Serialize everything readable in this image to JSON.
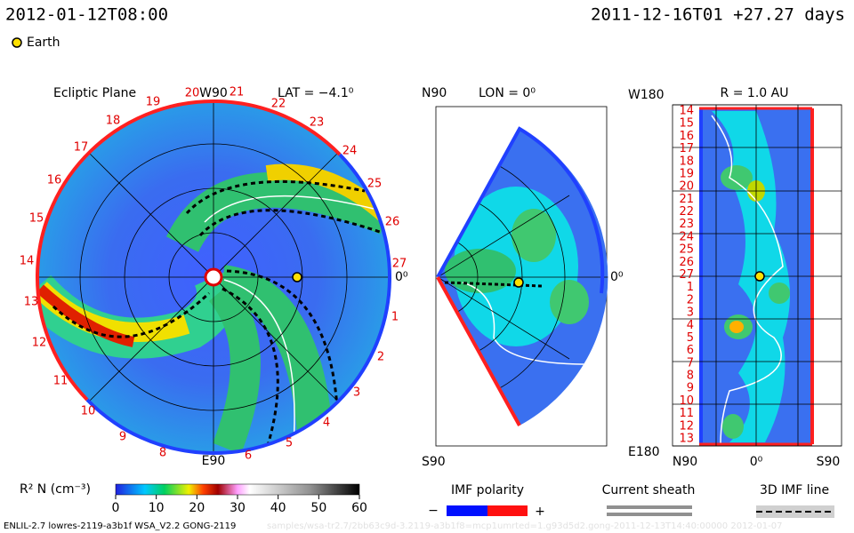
{
  "header": {
    "time_left": "2012-01-12T08:00",
    "time_right": "2011-12-16T01 +27.27 days",
    "legend_earth": "Earth"
  },
  "ecliptic": {
    "title": "Ecliptic Plane",
    "top_label": "W90",
    "lat": "LAT = −4.1⁰",
    "right_label": "0⁰",
    "bottom_label": "E90",
    "day_labels": [
      "20",
      "21",
      "22",
      "23",
      "24",
      "25",
      "26",
      "27",
      "1",
      "2",
      "3",
      "4",
      "5",
      "6",
      "8",
      "9",
      "10",
      "11",
      "12",
      "13",
      "14",
      "15",
      "16",
      "17",
      "18",
      "19"
    ]
  },
  "meridional": {
    "top_label": "N90",
    "lon": "LON = 0⁰",
    "right_label": "0⁰",
    "bottom_label": "S90"
  },
  "radial": {
    "top_label": "W180",
    "radius": "R = 1.0 AU",
    "bottom_label": "E180",
    "day_labels": [
      "14",
      "15",
      "16",
      "17",
      "18",
      "19",
      "20",
      "21",
      "22",
      "23",
      "24",
      "25",
      "26",
      "27",
      "1",
      "2",
      "3",
      "4",
      "5",
      "6",
      "7",
      "8",
      "9",
      "10",
      "11",
      "12",
      "13"
    ],
    "x_labels": [
      "N90",
      "0⁰",
      "S90"
    ]
  },
  "colorbar": {
    "title": "R² N (cm⁻³)",
    "range": [
      0,
      60
    ],
    "ticks": [
      0,
      10,
      20,
      30,
      40,
      50,
      60
    ]
  },
  "legends": {
    "imf_polarity": "IMF polarity",
    "minus": "−",
    "plus": "+",
    "current_sheath": "Current sheath",
    "imf_line": "3D IMF line"
  },
  "footer": {
    "run": "ENLIL-2.7 lowres-2119-a3b1f WSA_V2.2 GONG-2119",
    "path": "samples/wsa-tr2.7/2bb63c9d-3.2119-a3b1f8=mcp1umrted=1.g93d5d2.gong-2011-12-13T14:40:00000   2012-01-07"
  }
}
